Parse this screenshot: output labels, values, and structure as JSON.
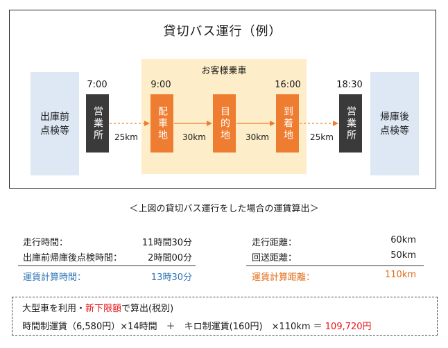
{
  "title": "貸切バス運行（例）",
  "band_label": "お客様乗車",
  "depart_inspection": "出庫前\n点検等",
  "return_inspection": "帰庫後\n点検等",
  "stops": [
    {
      "label": "営業所",
      "time": "7:00",
      "color": "#3a3a3a"
    },
    {
      "label": "配車地",
      "time": "9:00",
      "color": "#ee7d31"
    },
    {
      "label": "目的地",
      "time": "",
      "color": "#ee7d31"
    },
    {
      "label": "到着地",
      "time": "16:00",
      "color": "#ee7d31"
    },
    {
      "label": "営業所",
      "time": "18:30",
      "color": "#3a3a3a"
    }
  ],
  "distances": [
    "25km",
    "30km",
    "30km",
    "25km"
  ],
  "subtitle": "＜上図の貸切バス運行をした場合の運賃算出＞",
  "time_calc": {
    "run_label": "走行時間：",
    "run_value": "11時間30分",
    "insp_label": "出庫前帰庫後点検時間：",
    "insp_value": "2時間00分",
    "total_label": "運賃計算時間：",
    "total_value": "13時30分"
  },
  "dist_calc": {
    "run_label": "走行距離：",
    "run_value": "60km",
    "return_label": "回送距離：",
    "return_value": "50km",
    "total_label": "運賃計算距離：",
    "total_value": "110km"
  },
  "note": {
    "line1_pre": "大型車を利用・",
    "line1_highlight": "新下限額",
    "line1_post": "で算出(税別)",
    "formula": "時間制運賃（6,580円）×14時間　＋　キロ制運賃(160円)　×110km ＝",
    "result": "109,720円"
  },
  "colors": {
    "accent_blue": "#2e75b6",
    "accent_orange": "#e06c16",
    "result_red": "#e8161a"
  }
}
